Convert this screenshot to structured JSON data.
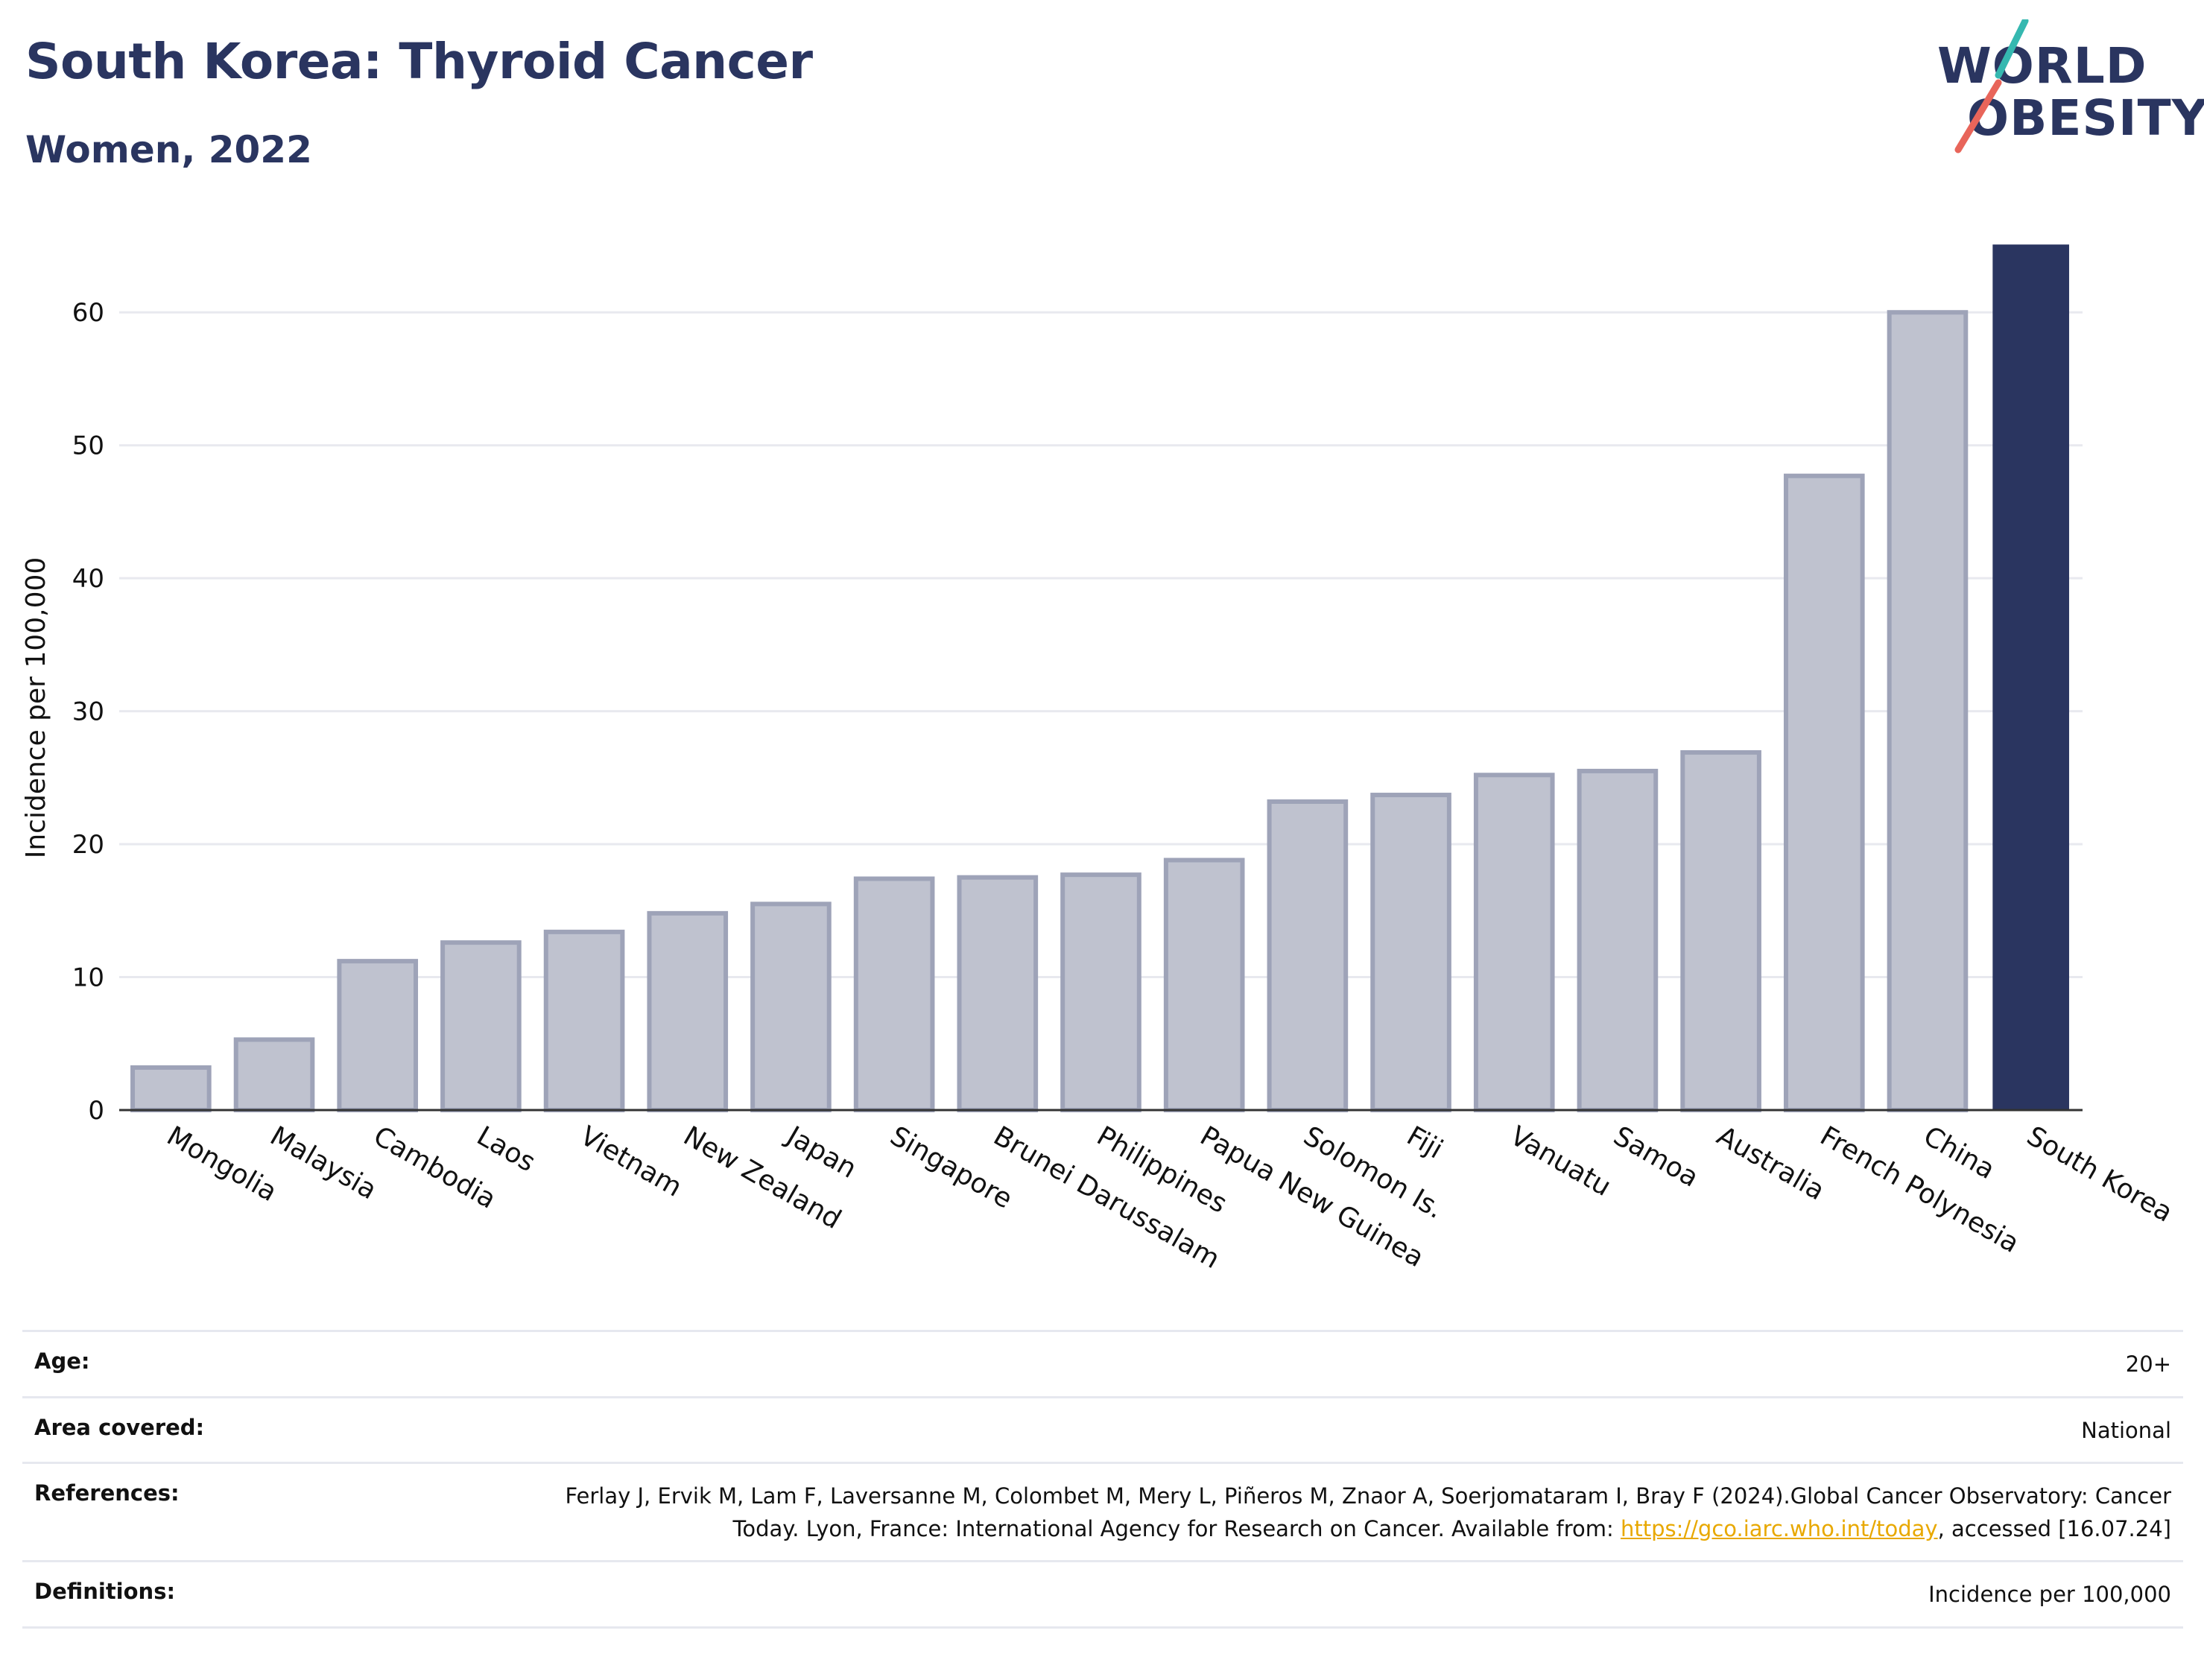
{
  "header": {
    "title": "South Korea: Thyroid Cancer",
    "subtitle": "Women, 2022"
  },
  "logo": {
    "line1": "WORLD",
    "line2": "OBESITY",
    "accent_colors": [
      "#35b8b0",
      "#e8655a"
    ]
  },
  "colors": {
    "highlight": "#2a3560",
    "bar_fill": "#bfc2cf",
    "bar_stroke": "#9ea3b8",
    "grid": "#e8e9ef"
  },
  "chart_data": {
    "type": "bar",
    "ylabel": "Incidence per 100,000",
    "xlabel": "",
    "ylim": [
      0,
      65
    ],
    "yticks": [
      0,
      10,
      20,
      30,
      40,
      50,
      60
    ],
    "grid": true,
    "highlight": "South Korea",
    "categories": [
      "Mongolia",
      "Malaysia",
      "Cambodia",
      "Laos",
      "Vietnam",
      "New Zealand",
      "Japan",
      "Singapore",
      "Brunei Darussalam",
      "Philippines",
      "Papua New Guinea",
      "Solomon Is.",
      "Fiji",
      "Vanuatu",
      "Samoa",
      "Australia",
      "French Polynesia",
      "China",
      "South Korea"
    ],
    "values": [
      3.2,
      5.3,
      11.2,
      12.6,
      13.4,
      14.8,
      15.5,
      17.4,
      17.5,
      17.7,
      18.8,
      23.2,
      23.7,
      25.2,
      25.5,
      26.9,
      47.7,
      60.0,
      65.1
    ]
  },
  "meta": {
    "rows": [
      {
        "label": "Age:",
        "value": "20+"
      },
      {
        "label": "Area covered:",
        "value": "National"
      },
      {
        "label": "References:",
        "value_before": "Ferlay J, Ervik M, Lam F, Laversanne M, Colombet M, Mery L, Piñeros M, Znaor A, Soerjomataram I, Bray F (2024).Global Cancer Observatory: Cancer Today. Lyon, France: International Agency for Research on Cancer. Available from: ",
        "link": "https://gco.iarc.who.int/today",
        "value_after": ", accessed [16.07.24]"
      },
      {
        "label": "Definitions:",
        "value": "Incidence per 100,000"
      }
    ]
  }
}
